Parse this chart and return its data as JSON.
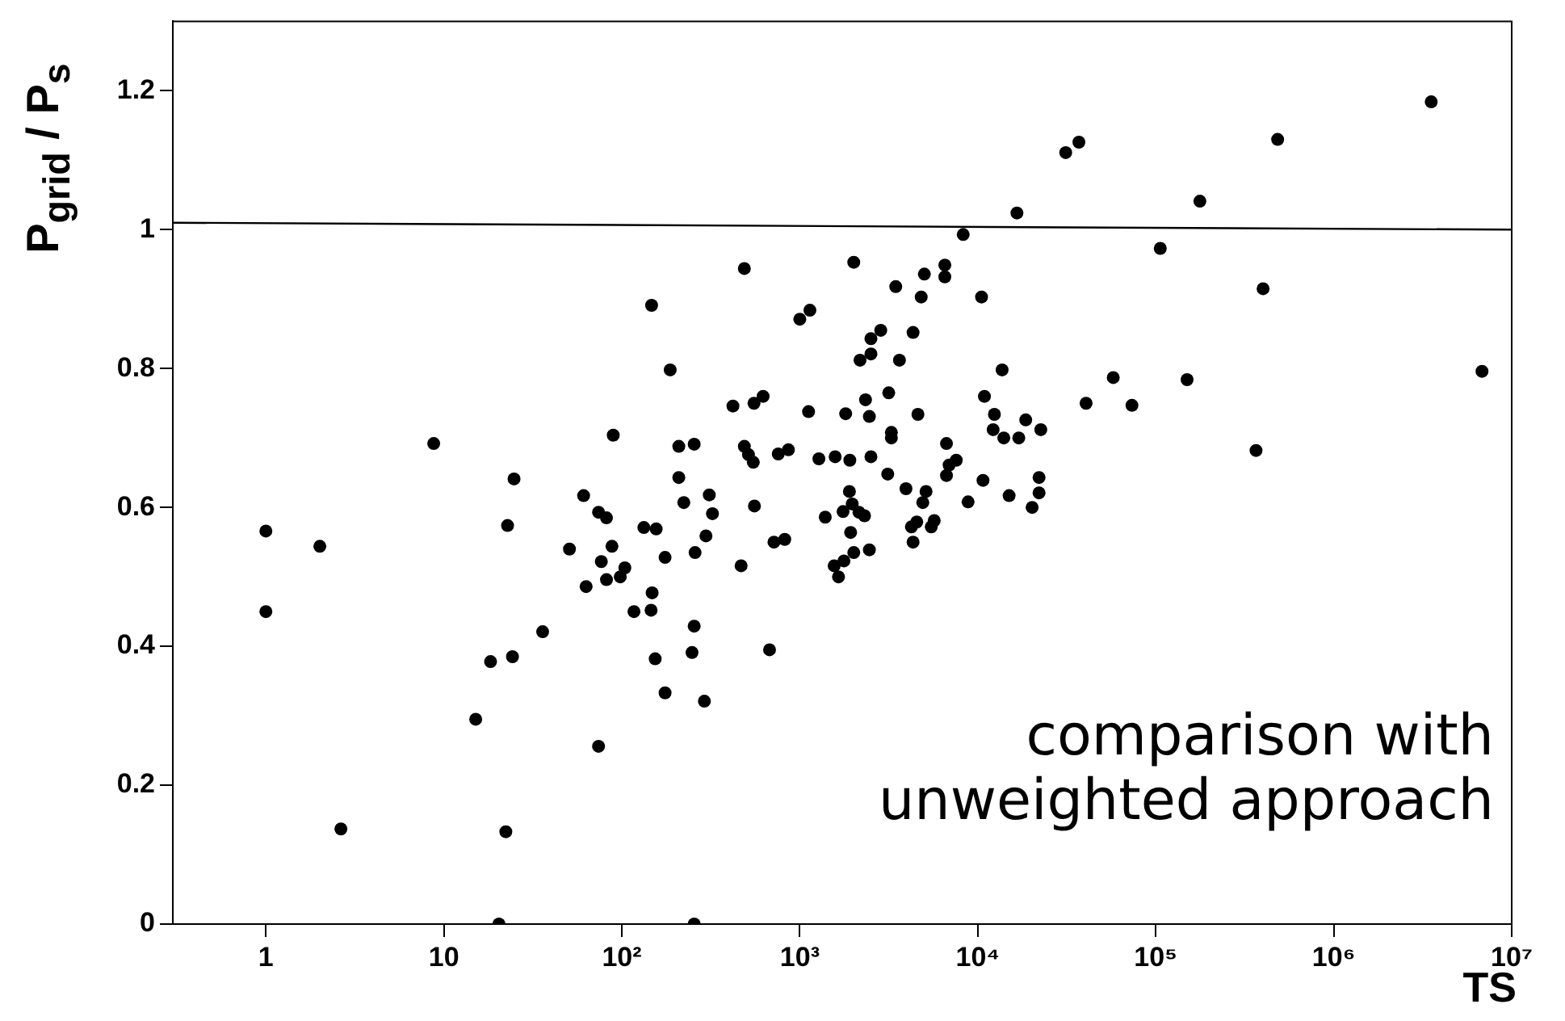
{
  "chart_data": {
    "type": "scatter",
    "xlabel": "TS",
    "ylabel": "P$_{grid}$ / P$_{s}$",
    "annotations": [
      "comparison with unweighted approach"
    ],
    "log": "x",
    "xlim": [
      0.3,
      10000000
    ],
    "ylim": [
      0,
      1.3
    ],
    "xticks": [
      1,
      10,
      {
        "value": 100,
        "label": "10²"
      },
      {
        "value": 1000,
        "label": "10³"
      },
      {
        "value": 10000,
        "label": "10⁴"
      },
      {
        "value": 100000,
        "label": "10⁵"
      },
      {
        "value": 1000000,
        "label": "10⁶"
      },
      {
        "value": 10000000,
        "label": "10⁷"
      }
    ],
    "yticks": [
      0,
      0.2,
      0.4,
      0.6,
      0.8,
      1,
      1.2
    ],
    "grid": false,
    "legend": false,
    "marker": "circle",
    "series": [
      {
        "color": "#000000",
        "x": [
          1,
          1,
          2.01,
          2.64,
          8.77,
          89.5,
          24.8,
          61,
          22.8,
          74,
          82,
          50.8,
          88,
          76.7,
          104,
          98,
          63,
          82,
          133,
          156,
          148,
          117,
          146,
          154,
          35.9,
          18.3,
          24.3,
          15.1,
          74,
          22.3,
          20.4,
          8280,
          488,
          2010,
          5010,
          6530,
          6530,
          3460,
          4810,
          10500,
          147,
          1000,
          1140,
          2850,
          2510,
          4330,
          2180,
          2510,
          3630,
          187,
          3160,
          2340,
          2460,
          4610,
          10900,
          12400,
          12200,
          421,
          553,
          622,
          1120,
          1810,
          209,
          255,
          488,
          548,
          515,
          757,
          863,
          1280,
          1580,
          1910,
          2510,
          3270,
          3270,
          3120,
          6670,
          7570,
          6900,
          6670,
          10700,
          209,
          223,
          310,
          323,
          556,
          297,
          258,
          175,
          716,
          823,
          468,
          1900,
          1750,
          1970,
          2150,
          2310,
          1390,
          1930,
          2010,
          2460,
          1770,
          1560,
          1650,
          3950,
          5120,
          4910,
          4540,
          4240,
          4330,
          5690,
          5480,
          8820,
          255,
          248,
          676,
          291,
          175,
          255,
          3530000,
          484000,
          37000,
          31200,
          177000,
          16600,
          106000,
          401000,
          6810000,
          13700,
          57700,
          150000,
          40600,
          73500,
          14000,
          17000,
          18600,
          22600,
          366000,
          15000,
          22100,
          22100,
          20200
        ],
        "values": [
          0.566,
          0.45,
          0.544,
          0.137,
          0.692,
          0.704,
          0.641,
          0.617,
          0.574,
          0.593,
          0.585,
          0.54,
          0.544,
          0.522,
          0.513,
          0.5,
          0.486,
          0.496,
          0.571,
          0.569,
          0.477,
          0.45,
          0.452,
          0.382,
          0.421,
          0.378,
          0.385,
          0.295,
          0.256,
          0.133,
          0,
          0.993,
          0.944,
          0.953,
          0.936,
          0.949,
          0.932,
          0.918,
          0.903,
          0.903,
          0.891,
          0.871,
          0.884,
          0.855,
          0.843,
          0.852,
          0.812,
          0.821,
          0.812,
          0.798,
          0.765,
          0.755,
          0.731,
          0.734,
          0.76,
          0.734,
          0.712,
          0.746,
          0.75,
          0.76,
          0.738,
          0.735,
          0.688,
          0.691,
          0.688,
          0.665,
          0.676,
          0.677,
          0.683,
          0.67,
          0.673,
          0.668,
          0.673,
          0.708,
          0.7,
          0.648,
          0.692,
          0.668,
          0.661,
          0.646,
          0.639,
          0.643,
          0.607,
          0.618,
          0.591,
          0.602,
          0.559,
          0.535,
          0.528,
          0.55,
          0.554,
          0.516,
          0.623,
          0.594,
          0.605,
          0.593,
          0.588,
          0.586,
          0.564,
          0.535,
          0.539,
          0.523,
          0.516,
          0.5,
          0.627,
          0.623,
          0.607,
          0.579,
          0.572,
          0.55,
          0.581,
          0.572,
          0.608,
          0.429,
          0.391,
          0.395,
          0.321,
          0.333,
          0,
          1.184,
          1.13,
          1.126,
          1.111,
          1.041,
          1.024,
          0.973,
          0.915,
          0.796,
          0.798,
          0.787,
          0.784,
          0.75,
          0.747,
          0.7,
          0.7,
          0.726,
          0.712,
          0.682,
          0.617,
          0.643,
          0.621,
          0.6
        ]
      },
      {
        "type": "line",
        "color": "#000000",
        "marker": "none",
        "line_style": "solid",
        "x": [
          0.3,
          10000000
        ],
        "values": [
          1.01,
          1.0
        ]
      }
    ]
  }
}
